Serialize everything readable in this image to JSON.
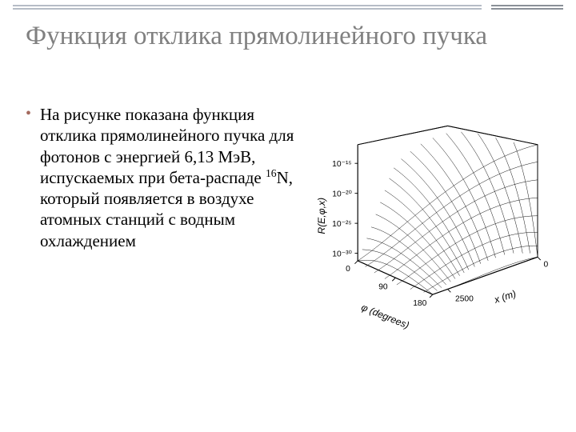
{
  "decor": {
    "rule_color_long": "#b6bcc6",
    "rule_color_short": "#8a9098"
  },
  "title": "Функция отклика прямолинейного пучка",
  "bullet": {
    "color": "#a46a5e",
    "text_before": "На рисунке показана функция отклика прямолинейного пучка для фотонов с энергией 6,13 МэВ, испускаемых при бета-распаде ",
    "superscript": "16",
    "text_after": "N, который появляется в воздухе атомных станций с водным охлаждением"
  },
  "chart": {
    "type": "3d-surface-wireframe",
    "z_axis": {
      "label": "R(E,φ,x)",
      "scale": "log",
      "ticks": [
        "10⁻¹⁵",
        "10⁻²⁰",
        "10⁻²⁵",
        "10⁻³⁰"
      ]
    },
    "x_axis_phi": {
      "label": "φ (degrees)",
      "ticks": [
        "0",
        "90",
        "180"
      ],
      "range": [
        0,
        180
      ]
    },
    "x_axis_x": {
      "label": "x (m)",
      "ticks": [
        "0",
        "2500"
      ],
      "range": [
        0,
        2500
      ]
    },
    "colors": {
      "mesh": "#000000",
      "background": "#ffffff",
      "axes": "#000000"
    },
    "line_width": 0.5,
    "note": "Surface shows R decreasing sharply with increasing φ and x; front-left corner (φ≈0,x≈0) highest."
  }
}
